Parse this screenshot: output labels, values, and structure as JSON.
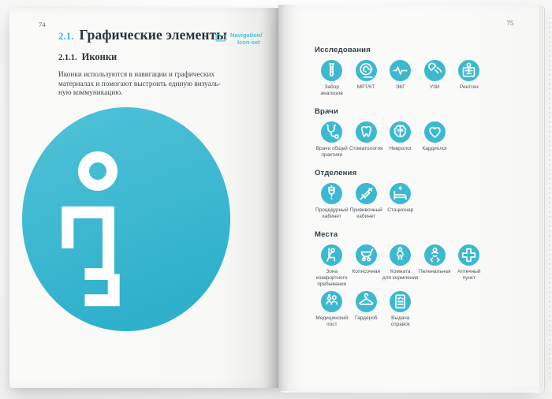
{
  "left_page": {
    "page_number": "74",
    "section_number": "2.1.",
    "section_title": "Графические элементы",
    "subsection_number": "2.1.1.",
    "subsection_title": "Иконки",
    "body_text": "Иконки используются в навигации и графических\nматериалах и помогают выстроить единую визуаль-\nную коммуникацию.",
    "nav_tag": {
      "line1": "Navigation/",
      "line2": "Icon-set"
    },
    "hero_icon": "info-i"
  },
  "right_page": {
    "page_number": "75",
    "sections": [
      {
        "title": "Исследования",
        "icons": [
          {
            "icon": "test-tube",
            "label": "Забор\nанализов"
          },
          {
            "icon": "mri-scanner",
            "label": "МРТ/КТ"
          },
          {
            "icon": "ecg-pulse",
            "label": "ЭКГ"
          },
          {
            "icon": "ultrasound-probe",
            "label": "УЗИ"
          },
          {
            "icon": "xray",
            "label": "Рентген"
          }
        ]
      },
      {
        "title": "Врачи",
        "icons": [
          {
            "icon": "stethoscope",
            "label": "Врачи общей\nпрактики"
          },
          {
            "icon": "tooth",
            "label": "Стоматология"
          },
          {
            "icon": "brain",
            "label": "Невролог"
          },
          {
            "icon": "heart",
            "label": "Кардиолог"
          }
        ]
      },
      {
        "title": "Отделения",
        "icons": [
          {
            "icon": "iv-drip",
            "label": "Процедурный\nкабинет"
          },
          {
            "icon": "syringe",
            "label": "Прививочный\nкабинет"
          },
          {
            "icon": "hospital-bed",
            "label": "Стационар"
          }
        ]
      },
      {
        "title": "Места",
        "icons": [
          {
            "icon": "lounge-chair",
            "label": "Зона\nкомфортного\nпребывания"
          },
          {
            "icon": "stroller",
            "label": "Колясочная"
          },
          {
            "icon": "nursing-room",
            "label": "Комната\nдля кормления"
          },
          {
            "icon": "baby-changing",
            "label": "Пеленальная"
          },
          {
            "icon": "pharmacy-cross",
            "label": "Аптечный\nпункт"
          },
          {
            "icon": "medical-post",
            "label": "Медицинский\nпост"
          },
          {
            "icon": "coat-hanger",
            "label": "Гардероб"
          },
          {
            "icon": "certificate-doc",
            "label": "Выдача\nсправок"
          }
        ]
      }
    ]
  },
  "colors": {
    "accent": "#3cb9d1",
    "hero_gradient_top": "#50c3d8",
    "hero_gradient_bottom": "#2fb0cb",
    "title_text": "#28333d",
    "body_text": "#41484e",
    "label_text": "#4b555e"
  }
}
